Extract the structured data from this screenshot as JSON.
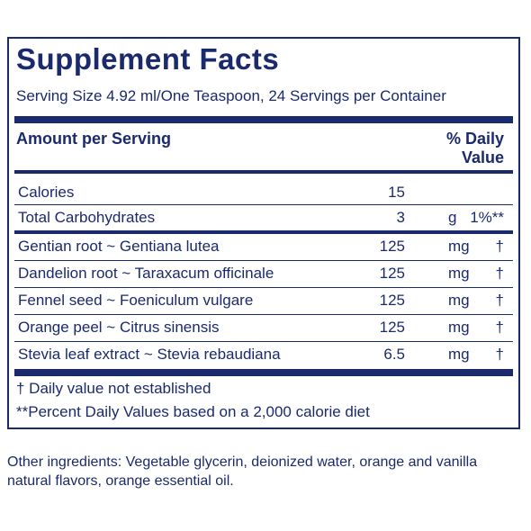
{
  "title": "Supplement Facts",
  "serving": "Serving Size 4.92 ml/One Teaspoon, 24 Servings per Container",
  "header": {
    "amount": "Amount per Serving",
    "dv_line1": "% Daily",
    "dv_line2": "Value"
  },
  "calories": {
    "name": "Calories",
    "amount": "15",
    "unit": "",
    "dv": ""
  },
  "carbs": {
    "name": "Total Carbohydrates",
    "amount": "3",
    "unit": "g",
    "dv": "1%**"
  },
  "ingredients": [
    {
      "name": "Gentian root ~ Gentiana lutea",
      "amount": "125",
      "unit": "mg",
      "dv": "†"
    },
    {
      "name": "Dandelion root ~ Taraxacum officinale",
      "amount": "125",
      "unit": "mg",
      "dv": "†"
    },
    {
      "name": "Fennel seed ~ Foeniculum vulgare",
      "amount": "125",
      "unit": "mg",
      "dv": "†"
    },
    {
      "name": "Orange peel ~ Citrus sinensis",
      "amount": "125",
      "unit": "mg",
      "dv": "†"
    },
    {
      "name": "Stevia leaf extract ~ Stevia rebaudiana",
      "amount": "6.5",
      "unit": "mg",
      "dv": "†"
    }
  ],
  "footnotes": {
    "dagger": "† Daily value not established",
    "percent": "**Percent Daily Values based on a 2,000 calorie diet"
  },
  "other_ingredients": "Other ingredients: Vegetable glycerin, deionized water, orange and vanilla natural flavors, orange essential oil.",
  "colors": {
    "ink": "#1a2a6c"
  }
}
